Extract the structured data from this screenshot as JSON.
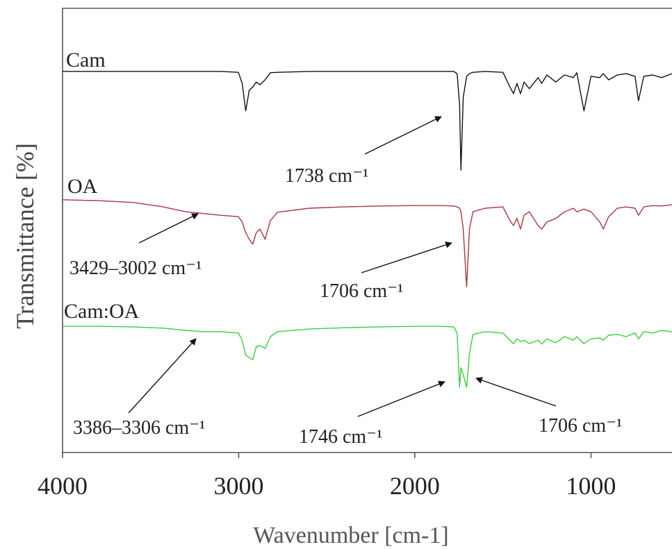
{
  "chart_data": {
    "type": "line",
    "x_label": "Wavenumber [cm-1]",
    "y_label": "Transmittance [%]",
    "xlim": [
      4000,
      540
    ],
    "ylim": [
      0,
      100
    ],
    "xticks": [
      4000,
      3000,
      2000,
      1000
    ],
    "x": [
      4000,
      3800,
      3600,
      3429,
      3300,
      3200,
      3100,
      3002,
      2980,
      2960,
      2940,
      2920,
      2900,
      2880,
      2850,
      2820,
      2780,
      2600,
      2400,
      2200,
      2000,
      1850,
      1780,
      1760,
      1746,
      1738,
      1725,
      1706,
      1690,
      1670,
      1600,
      1500,
      1460,
      1440,
      1420,
      1400,
      1380,
      1350,
      1300,
      1280,
      1250,
      1200,
      1150,
      1100,
      1080,
      1040,
      1000,
      950,
      930,
      900,
      850,
      800,
      750,
      730,
      700,
      650,
      600,
      540
    ],
    "series": [
      {
        "name": "Cam",
        "color": "#111111",
        "values": [
          85.8,
          85.8,
          85.8,
          85.8,
          85.8,
          85.8,
          85.8,
          85.6,
          83.1,
          76.9,
          81.6,
          82.3,
          83.4,
          82.8,
          83.9,
          85.5,
          85.6,
          85.8,
          85.8,
          85.8,
          85.8,
          85.8,
          85.8,
          85.3,
          78.4,
          63.6,
          80,
          84.7,
          85.3,
          85.6,
          85.8,
          85.6,
          82.3,
          80.8,
          83.1,
          80.8,
          83.4,
          81.9,
          84.4,
          83.1,
          85,
          83.4,
          85,
          84.4,
          85.5,
          76.9,
          84.7,
          84.4,
          85.3,
          83.9,
          85,
          85.3,
          84.7,
          79.2,
          84.7,
          85,
          84.4,
          85.3
        ]
      },
      {
        "name": "OA",
        "color": "#a8373c",
        "values": [
          56.9,
          56.7,
          56.3,
          55.3,
          54.2,
          53.8,
          53.4,
          53.1,
          51.9,
          49.5,
          48,
          46.9,
          49.5,
          50.3,
          48,
          52.2,
          54.1,
          55,
          55.3,
          55.5,
          55.6,
          55.6,
          55.5,
          55.3,
          55,
          54.2,
          50.3,
          37.3,
          50.3,
          54.2,
          55,
          55.3,
          52.2,
          51.1,
          52.7,
          50.3,
          53.4,
          54.2,
          51.1,
          50.3,
          51.9,
          52.7,
          54.2,
          55,
          54.2,
          54.8,
          54.2,
          51.9,
          50.3,
          53.1,
          55,
          55.3,
          55,
          53.4,
          55.3,
          55.6,
          55.5,
          55.8
        ]
      },
      {
        "name": "Cam:OA",
        "color": "#3ccc3c",
        "values": [
          28.4,
          28.4,
          28.3,
          28,
          27.5,
          27.2,
          27.2,
          26.9,
          25.3,
          21.9,
          21.4,
          20.9,
          23.8,
          24.1,
          23.4,
          26.1,
          27.2,
          27.8,
          28.1,
          28.3,
          28.4,
          28.4,
          28.3,
          26.9,
          14.7,
          19.1,
          17.5,
          14.7,
          22.2,
          26.6,
          27.2,
          26.9,
          25.3,
          24.5,
          25.6,
          25,
          25.3,
          24.5,
          25.3,
          24.4,
          25.6,
          24.7,
          26.1,
          25.3,
          26.1,
          24.5,
          25.6,
          25.8,
          25.3,
          26.4,
          26.6,
          26.1,
          26.9,
          25.6,
          27.2,
          26.9,
          27.5,
          27.2
        ]
      }
    ],
    "annotations": [
      "1738 cm⁻¹",
      "3429–3002 cm⁻¹",
      "1706 cm⁻¹",
      "3386–3306 cm⁻¹",
      "1746 cm⁻¹",
      "1706 cm⁻¹"
    ]
  }
}
